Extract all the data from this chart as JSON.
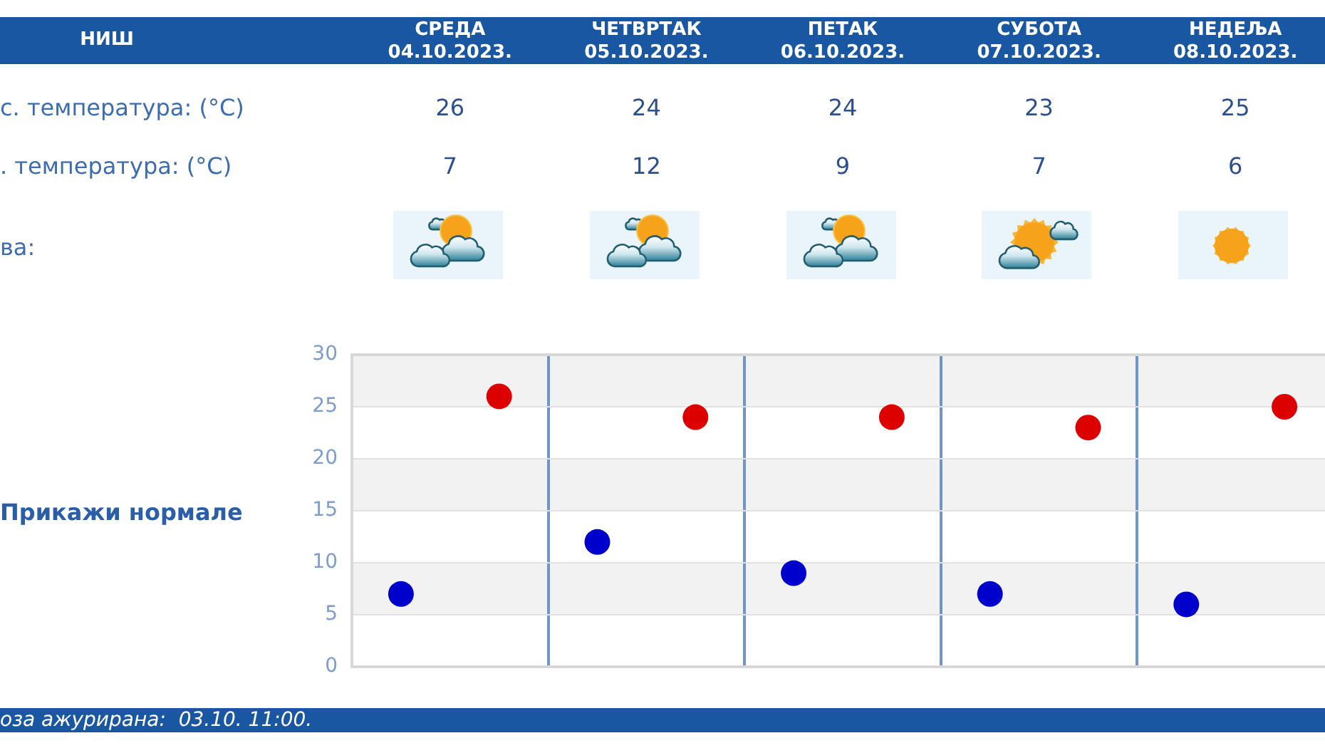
{
  "chart_data": {
    "type": "scatter",
    "title": "НИШ",
    "categories": [
      null,
      null,
      null,
      null,
      null
    ],
    "series": [
      {
        "color": "#dd0000",
        "values": [
          26,
          24,
          24,
          23,
          25
        ]
      },
      {
        "color": "#0000cc",
        "values": [
          7,
          12,
          9,
          7,
          6
        ]
      }
    ],
    "ylim": [
      0,
      30
    ],
    "yticks": [
      0,
      5,
      10,
      15,
      20,
      25,
      30
    ],
    "grid": true,
    "marker": "circle",
    "data_labels": true,
    "annotations": [
      "СРЕДА 04.10.2023.",
      "ЧЕТВРТАК 05.10.2023.",
      "ПЕТАК 06.10.2023.",
      "СУБОТА 07.10.2023.",
      "НЕДЕЉА 08.10.2023.",
      "с. температура: (°C)",
      ". температура: (°C)",
      "ва:",
      "Прикажи нормале",
      "оза ажурирана:  03.10. 11:00."
    ]
  }
}
